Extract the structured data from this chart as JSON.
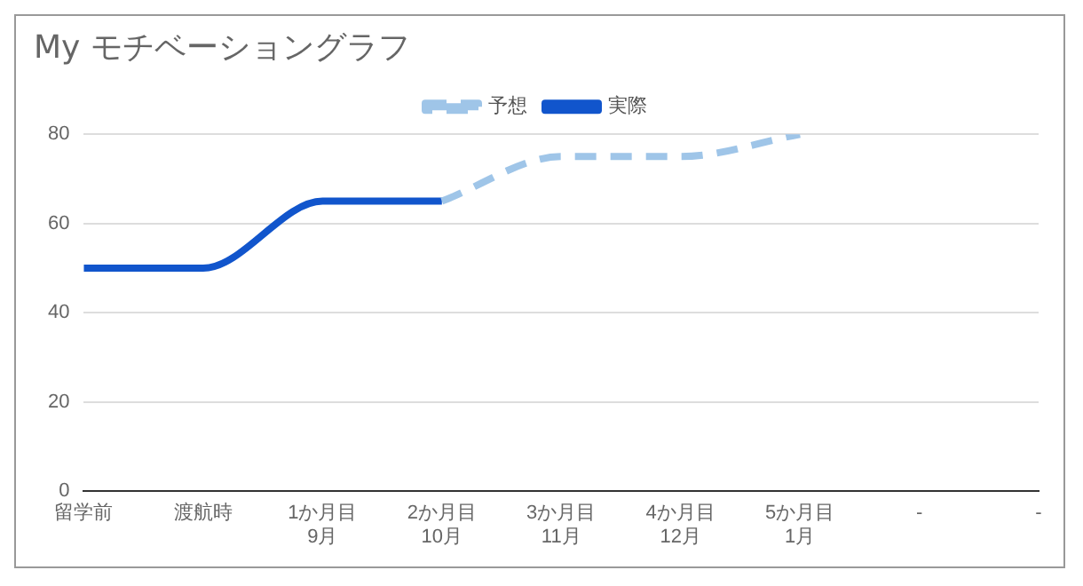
{
  "chart_data": {
    "type": "line",
    "title": "My モチベーショングラフ",
    "categories": [
      "留学前",
      "渡航時",
      "1か月目\n9月",
      "2か月目\n10月",
      "3か月目\n11月",
      "4か月目\n12月",
      "5か月目\n1月",
      "-",
      "-"
    ],
    "series": [
      {
        "name": "予想",
        "color": "#9fc5e8",
        "line_style": "dashed",
        "values": [
          null,
          null,
          null,
          65,
          75,
          75,
          80,
          null,
          null
        ]
      },
      {
        "name": "実際",
        "color": "#1155cc",
        "line_style": "solid",
        "values": [
          50,
          50,
          65,
          65,
          null,
          null,
          null,
          null,
          null
        ]
      }
    ],
    "ylim": [
      0,
      80
    ],
    "yticks": [
      0,
      20,
      40,
      60,
      80
    ],
    "grid": "y",
    "legend": "top",
    "marker": "none"
  }
}
